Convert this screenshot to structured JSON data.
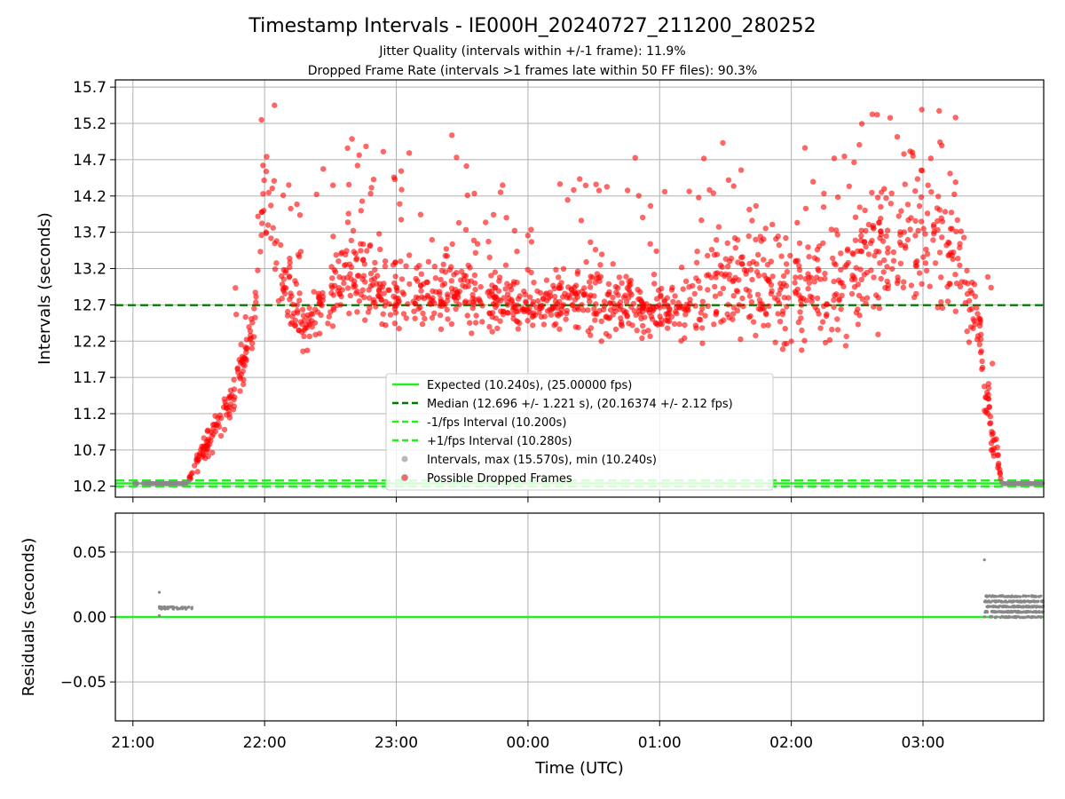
{
  "header": {
    "title": "Timestamp Intervals - IE000H_20240727_211200_280252",
    "subtitle_1": "Jitter Quality (intervals within +/-1 frame): 11.9%",
    "subtitle_2": "Dropped Frame Rate (intervals >1 frames late within 50 FF files): 90.3%"
  },
  "colors": {
    "expected": "#22ee22",
    "median": "#007700",
    "fps_band": "#22ee22",
    "intervals": "#888888",
    "dropped": "#ff0000",
    "grid": "#b0b0b0"
  },
  "chart_data": [
    {
      "type": "scatter",
      "panel": "intervals",
      "ylabel": "Intervals (seconds)",
      "xlabel": "",
      "x_ticks": [
        "21:00",
        "22:00",
        "23:00",
        "00:00",
        "01:00",
        "02:00",
        "03:00"
      ],
      "y_ticks": [
        "10.2",
        "10.7",
        "11.2",
        "11.7",
        "12.2",
        "12.7",
        "13.2",
        "13.7",
        "14.2",
        "14.7",
        "15.2",
        "15.7"
      ],
      "x_range_hours_utc": [
        "20:52",
        "03:55"
      ],
      "ylim": [
        10.05,
        15.8
      ],
      "grid": true,
      "legend_placement": "lower-center",
      "reference_lines": {
        "expected": 10.24,
        "median": 12.696,
        "minus_fps": 10.2,
        "plus_fps": 10.28
      },
      "legend": [
        "Expected (10.240s), (25.00000 fps)",
        "Median (12.696 +/- 1.221 s), (20.16374 +/- 2.12 fps)",
        "-1/fps Interval (10.200s)",
        "+1/fps Interval (10.280s)",
        "Intervals, max (15.570s), min (10.240s)",
        "Possible Dropped Frames"
      ],
      "series_profile": [
        {
          "t": "21:00",
          "mean": 10.24,
          "spread": 0.0
        },
        {
          "t": "21:25",
          "mean": 10.24,
          "spread": 0.0
        },
        {
          "t": "21:30",
          "mean": 10.6,
          "spread": 0.15
        },
        {
          "t": "21:45",
          "mean": 11.4,
          "spread": 0.2
        },
        {
          "t": "21:55",
          "mean": 12.4,
          "spread": 0.3
        },
        {
          "t": "22:00",
          "mean": 14.3,
          "spread": 0.5
        },
        {
          "t": "22:07",
          "mean": 13.0,
          "spread": 0.4
        },
        {
          "t": "22:20",
          "mean": 12.4,
          "spread": 0.25
        },
        {
          "t": "22:35",
          "mean": 13.1,
          "spread": 0.4
        },
        {
          "t": "23:00",
          "mean": 12.8,
          "spread": 0.4
        },
        {
          "t": "23:30",
          "mean": 12.9,
          "spread": 0.45
        },
        {
          "t": "00:00",
          "mean": 12.65,
          "spread": 0.25
        },
        {
          "t": "00:30",
          "mean": 12.75,
          "spread": 0.4
        },
        {
          "t": "01:00",
          "mean": 12.6,
          "spread": 0.25
        },
        {
          "t": "01:30",
          "mean": 13.0,
          "spread": 0.6
        },
        {
          "t": "02:00",
          "mean": 12.8,
          "spread": 0.6
        },
        {
          "t": "02:30",
          "mean": 13.2,
          "spread": 0.7
        },
        {
          "t": "03:00",
          "mean": 13.8,
          "spread": 0.8
        },
        {
          "t": "03:15",
          "mean": 13.3,
          "spread": 0.6
        },
        {
          "t": "03:25",
          "mean": 12.5,
          "spread": 0.3
        },
        {
          "t": "03:30",
          "mean": 11.2,
          "spread": 0.4
        },
        {
          "t": "03:36",
          "mean": 10.24,
          "spread": 0.0
        },
        {
          "t": "03:55",
          "mean": 10.24,
          "spread": 0.0
        }
      ]
    },
    {
      "type": "scatter",
      "panel": "residuals",
      "ylabel": "Residuals (seconds)",
      "xlabel": "Time (UTC)",
      "x_ticks": [
        "21:00",
        "22:00",
        "23:00",
        "00:00",
        "01:00",
        "02:00",
        "03:00"
      ],
      "y_ticks": [
        "0.05",
        "0.00",
        "−0.05"
      ],
      "ylim": [
        -0.08,
        0.08
      ],
      "grid": true,
      "zero_line": 0.0,
      "clusters": [
        {
          "t_start": "21:12",
          "t_end": "21:27",
          "typical": 0.007,
          "max": 0.019,
          "min": 0.001
        },
        {
          "t_start": "03:28",
          "t_end": "03:55",
          "typical": 0.008,
          "max": 0.044,
          "min": 0.0
        }
      ]
    }
  ]
}
